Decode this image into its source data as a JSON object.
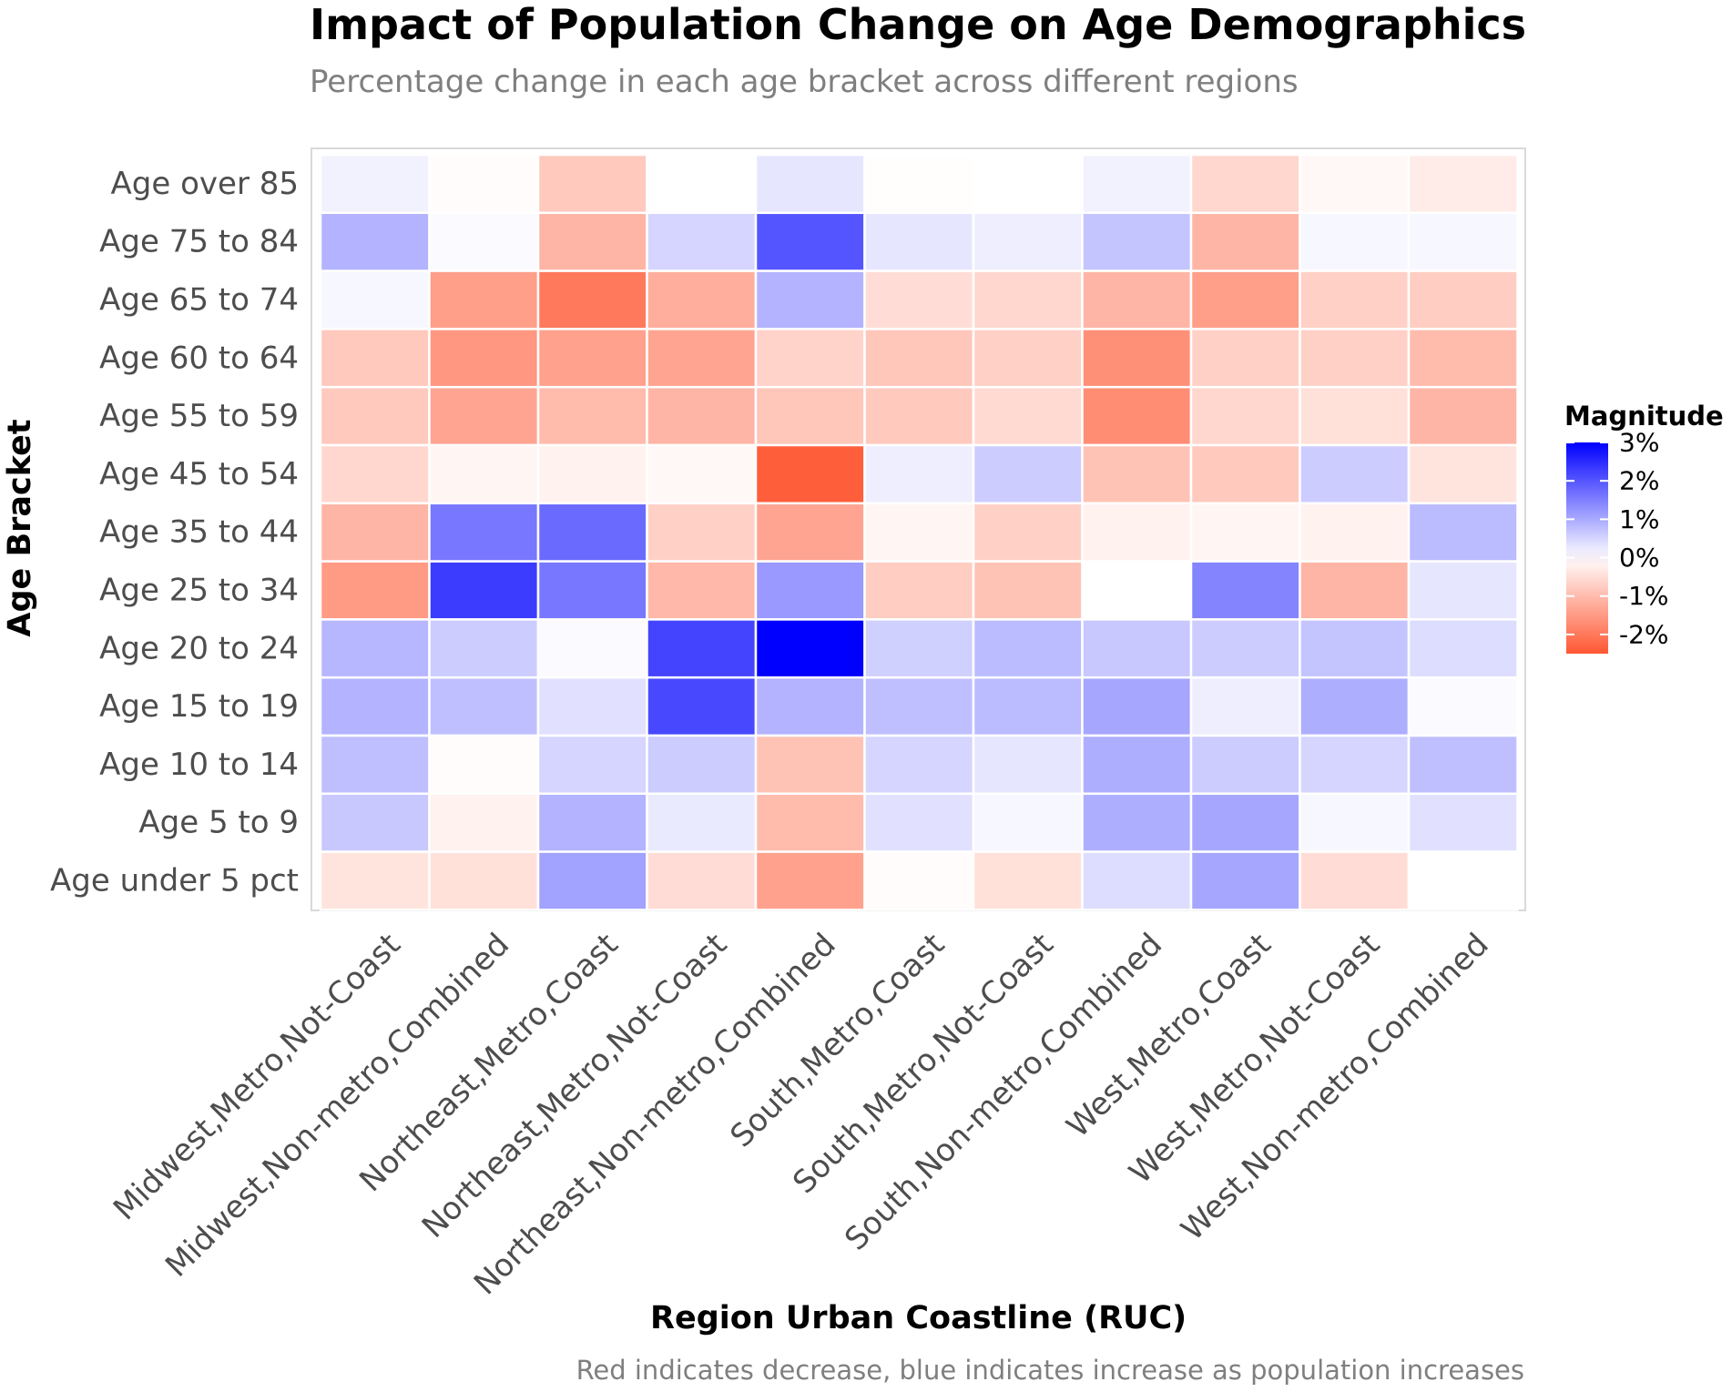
{
  "chart_data": {
    "type": "heatmap",
    "title": "Impact of Population Change on Age Demographics",
    "subtitle": "Percentage change in each age bracket across different regions",
    "caption": "Red indicates decrease, blue indicates increase as population increases",
    "xlabel": "Region Urban Coastline (RUC)",
    "ylabel": "Age Bracket",
    "x_categories": [
      "Midwest,Metro,Not-Coast",
      "Midwest,Non-metro,Combined",
      "Northeast,Metro,Coast",
      "Northeast,Metro,Not-Coast",
      "Northeast,Non-metro,Combined",
      "South,Metro,Coast",
      "South,Metro,Not-Coast",
      "South,Non-metro,Combined",
      "West,Metro,Coast",
      "West,Metro,Not-Coast",
      "West,Non-metro,Combined"
    ],
    "y_categories": [
      "Age over 85",
      "Age 75 to 84",
      "Age 65 to 74",
      "Age 60 to 64",
      "Age 55 to 59",
      "Age 45 to 54",
      "Age 35 to 44",
      "Age 25 to 34",
      "Age 20 to 24",
      "Age 15 to 19",
      "Age 10 to 14",
      "Age 5 to 9",
      "Age under 5 pct"
    ],
    "values": [
      [
        0.15,
        -0.05,
        -0.8,
        0.0,
        0.3,
        -0.02,
        0.0,
        0.15,
        -0.6,
        -0.1,
        -0.3
      ],
      [
        0.9,
        0.05,
        -1.1,
        0.5,
        2.0,
        0.3,
        0.2,
        0.7,
        -1.1,
        0.1,
        0.1
      ],
      [
        0.1,
        -1.45,
        -2.0,
        -1.2,
        0.9,
        -0.5,
        -0.6,
        -1.1,
        -1.45,
        -0.7,
        -0.75
      ],
      [
        -0.8,
        -1.55,
        -1.4,
        -1.35,
        -0.65,
        -0.85,
        -0.7,
        -1.65,
        -0.7,
        -0.7,
        -1.0
      ],
      [
        -0.8,
        -1.35,
        -1.0,
        -1.1,
        -0.85,
        -0.8,
        -0.55,
        -1.7,
        -0.6,
        -0.45,
        -1.1
      ],
      [
        -0.6,
        -0.15,
        -0.2,
        -0.1,
        -2.4,
        0.2,
        0.6,
        -0.9,
        -0.8,
        0.6,
        -0.4
      ],
      [
        -1.1,
        1.6,
        1.75,
        -0.7,
        -1.35,
        -0.15,
        -0.7,
        -0.2,
        -0.15,
        -0.2,
        0.8
      ],
      [
        -1.5,
        2.3,
        1.6,
        -1.05,
        1.2,
        -0.75,
        -0.9,
        0.0,
        1.45,
        -1.1,
        0.3
      ],
      [
        0.85,
        0.6,
        0.05,
        2.2,
        3.0,
        0.55,
        0.8,
        0.65,
        0.6,
        0.7,
        0.4
      ],
      [
        0.9,
        0.75,
        0.35,
        2.15,
        0.9,
        0.75,
        0.8,
        1.05,
        0.2,
        0.95,
        0.05
      ],
      [
        0.75,
        -0.05,
        0.5,
        0.6,
        -0.9,
        0.5,
        0.3,
        0.95,
        0.6,
        0.5,
        0.75
      ],
      [
        0.65,
        -0.2,
        0.9,
        0.25,
        -1.0,
        0.35,
        0.1,
        0.95,
        1.05,
        0.1,
        0.35
      ],
      [
        -0.4,
        -0.45,
        1.1,
        -0.5,
        -1.4,
        -0.05,
        -0.45,
        0.4,
        1.05,
        -0.5,
        0.0
      ]
    ],
    "scale": {
      "min": -2.5,
      "max": 3.0,
      "low_color": "#ff5733",
      "mid_color": "#ffffff",
      "high_color": "#0000ff"
    },
    "legend": {
      "title": "Magnitude",
      "placement": "right",
      "ticks": [
        3,
        2,
        1,
        0,
        -1,
        -2
      ],
      "tick_labels": [
        "3%",
        "2%",
        "1%",
        "0%",
        "-1%",
        "-2%"
      ]
    },
    "panel_border_color": "#d9d9d9",
    "tile_border_color": "#ffffff"
  }
}
